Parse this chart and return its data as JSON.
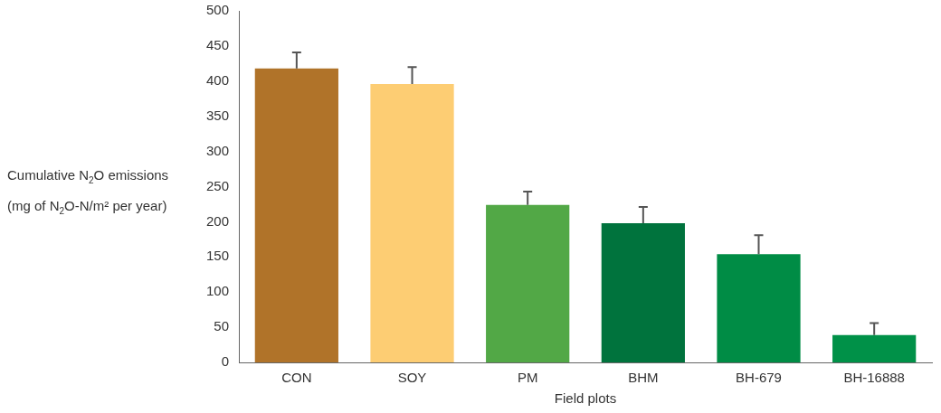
{
  "chart_data": {
    "type": "bar",
    "xlabel": "Field plots",
    "ylabel": "Cumulative N$_{2}$O emissions\n(mg of N$_{2}$O-N/m² per year)",
    "categories": [
      "CON",
      "SOY",
      "PM",
      "BHM",
      "BH-679",
      "BH-16888"
    ],
    "values": [
      418,
      396,
      224,
      198,
      154,
      39
    ],
    "colors": [
      "#b07329",
      "#fdcd73",
      "#52a846",
      "#00733d",
      "#008c45",
      "#009148"
    ],
    "errors": [
      [
        418,
        441
      ],
      [
        396,
        420
      ],
      [
        224,
        243
      ],
      [
        198,
        221
      ],
      [
        154,
        181
      ],
      [
        39,
        56
      ]
    ],
    "ylim": [
      0,
      500
    ],
    "yticks": [
      0,
      50,
      100,
      150,
      200,
      250,
      300,
      350,
      400,
      450,
      500
    ],
    "grid": false,
    "legend": false
  }
}
